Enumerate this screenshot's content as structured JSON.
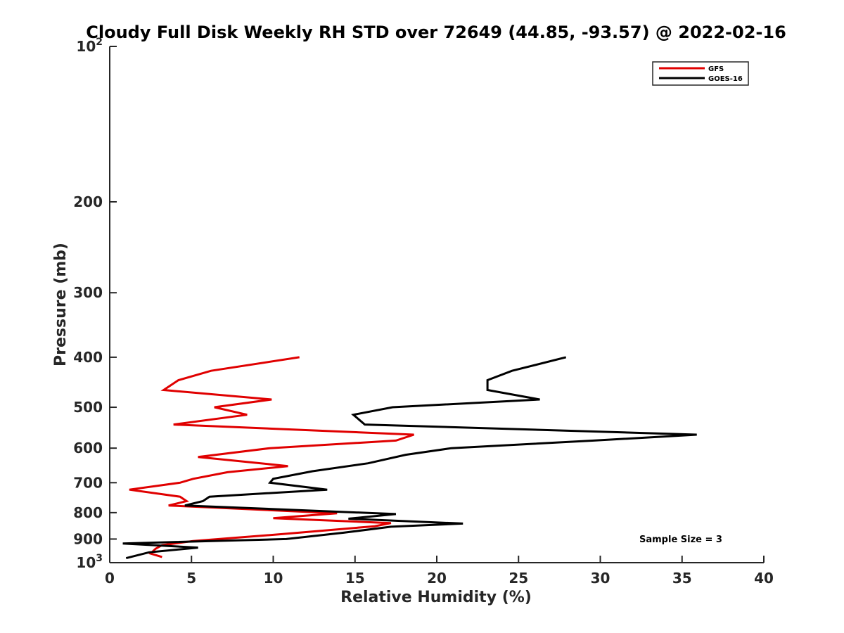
{
  "chart_data": {
    "type": "line",
    "title": "Cloudy Full Disk Weekly RH STD over 72649 (44.85, -93.57) @ 2022-02-16",
    "xlabel": "Relative Humidity (%)",
    "ylabel": "Pressure (mb)",
    "xlim": [
      0,
      40
    ],
    "ylim": [
      100,
      1000
    ],
    "y_scale": "log",
    "y_reversed": true,
    "x_ticks": [
      0,
      5,
      10,
      15,
      20,
      25,
      30,
      35,
      40
    ],
    "y_ticks": [
      {
        "value": 100,
        "base": "10",
        "exp": "2"
      },
      {
        "value": 200,
        "label": "200"
      },
      {
        "value": 300,
        "label": "300"
      },
      {
        "value": 400,
        "label": "400"
      },
      {
        "value": 500,
        "label": "500"
      },
      {
        "value": 600,
        "label": "600"
      },
      {
        "value": 700,
        "label": "700"
      },
      {
        "value": 800,
        "label": "800"
      },
      {
        "value": 900,
        "label": "900"
      },
      {
        "value": 1000,
        "base": "10",
        "exp": "3"
      }
    ],
    "grid": false,
    "legend_position": "top-right",
    "series": [
      {
        "name": "GFS",
        "color": "#e00000",
        "points": [
          [
            11.6,
            400
          ],
          [
            6.2,
            425
          ],
          [
            4.2,
            443
          ],
          [
            3.3,
            463
          ],
          [
            9.9,
            483
          ],
          [
            6.4,
            500
          ],
          [
            8.4,
            517
          ],
          [
            3.9,
            540
          ],
          [
            18.6,
            565
          ],
          [
            17.5,
            580
          ],
          [
            9.8,
            600
          ],
          [
            5.4,
            624
          ],
          [
            10.9,
            650
          ],
          [
            7.2,
            668
          ],
          [
            5.1,
            688
          ],
          [
            4.3,
            700
          ],
          [
            1.2,
            722
          ],
          [
            4.3,
            745
          ],
          [
            4.7,
            760
          ],
          [
            3.6,
            775
          ],
          [
            13.9,
            802
          ],
          [
            10.0,
            820
          ],
          [
            17.2,
            838
          ],
          [
            16.2,
            850
          ],
          [
            10.6,
            880
          ],
          [
            5.1,
            908
          ],
          [
            3.2,
            925
          ],
          [
            2.8,
            940
          ],
          [
            2.5,
            960
          ],
          [
            3.2,
            975
          ]
        ]
      },
      {
        "name": "GOES-16",
        "color": "#000000",
        "points": [
          [
            27.9,
            400
          ],
          [
            24.6,
            425
          ],
          [
            23.1,
            443
          ],
          [
            23.1,
            463
          ],
          [
            26.3,
            483
          ],
          [
            17.3,
            500
          ],
          [
            14.9,
            517
          ],
          [
            15.6,
            540
          ],
          [
            35.9,
            565
          ],
          [
            29.6,
            580
          ],
          [
            20.9,
            600
          ],
          [
            18.1,
            618
          ],
          [
            15.8,
            642
          ],
          [
            12.4,
            665
          ],
          [
            10.0,
            688
          ],
          [
            9.8,
            700
          ],
          [
            13.3,
            722
          ],
          [
            6.1,
            745
          ],
          [
            5.7,
            760
          ],
          [
            4.6,
            775
          ],
          [
            17.5,
            805
          ],
          [
            14.6,
            822
          ],
          [
            21.6,
            840
          ],
          [
            17.2,
            852
          ],
          [
            14.3,
            875
          ],
          [
            10.8,
            900
          ],
          [
            0.8,
            918
          ],
          [
            5.4,
            935
          ],
          [
            2.4,
            955
          ],
          [
            1.0,
            980
          ]
        ]
      }
    ],
    "annotation": "Sample Size = 3"
  }
}
